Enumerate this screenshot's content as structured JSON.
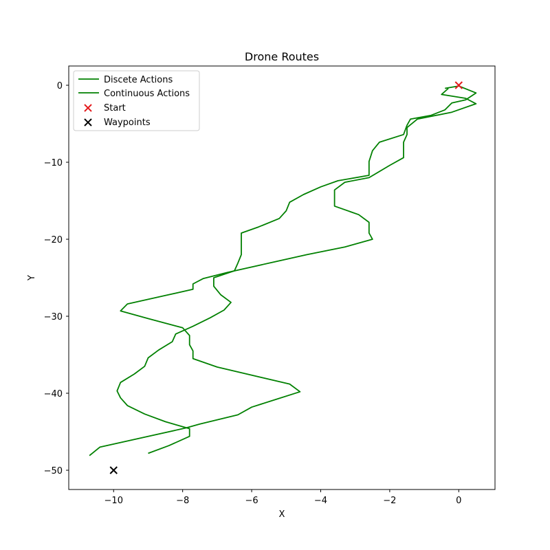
{
  "chart_data": {
    "type": "line",
    "title": "Drone Routes",
    "xlabel": "X",
    "ylabel": "Y",
    "xlim": [
      -11.3,
      1.05
    ],
    "ylim": [
      -52.5,
      2.5
    ],
    "xticks": [
      -10,
      -8,
      -6,
      -4,
      -2,
      0
    ],
    "yticks": [
      0,
      -10,
      -20,
      -30,
      -40,
      -50
    ],
    "xtick_labels": [
      "−10",
      "−8",
      "−6",
      "−4",
      "−2",
      "0"
    ],
    "ytick_labels": [
      "0",
      "−10",
      "−20",
      "−30",
      "−40",
      "−50"
    ],
    "grid": false,
    "legend_position": "top-left",
    "series": [
      {
        "name": "Discete Actions",
        "color": "#008000",
        "points": [
          [
            -9.0,
            -47.8
          ],
          [
            -8.4,
            -46.8
          ],
          [
            -7.8,
            -45.6
          ],
          [
            -7.8,
            -44.6
          ],
          [
            -8.5,
            -43.7
          ],
          [
            -9.1,
            -42.7
          ],
          [
            -9.6,
            -41.6
          ],
          [
            -9.8,
            -40.6
          ],
          [
            -9.9,
            -39.7
          ],
          [
            -9.8,
            -38.6
          ],
          [
            -9.4,
            -37.5
          ],
          [
            -9.1,
            -36.5
          ],
          [
            -9.0,
            -35.4
          ],
          [
            -8.7,
            -34.4
          ],
          [
            -8.3,
            -33.3
          ],
          [
            -8.2,
            -32.3
          ],
          [
            -7.7,
            -31.3
          ],
          [
            -7.2,
            -30.2
          ],
          [
            -6.8,
            -29.2
          ],
          [
            -6.6,
            -28.2
          ],
          [
            -6.9,
            -27.2
          ],
          [
            -7.1,
            -26.1
          ],
          [
            -7.1,
            -25.0
          ],
          [
            -6.5,
            -24.1
          ],
          [
            -6.4,
            -23.1
          ],
          [
            -6.3,
            -22.0
          ],
          [
            -6.3,
            -21.1
          ],
          [
            -6.3,
            -20.0
          ],
          [
            -6.3,
            -19.2
          ],
          [
            -5.8,
            -18.4
          ],
          [
            -5.2,
            -17.3
          ],
          [
            -5.0,
            -16.3
          ],
          [
            -4.9,
            -15.2
          ],
          [
            -4.5,
            -14.2
          ],
          [
            -4.0,
            -13.2
          ],
          [
            -3.5,
            -12.4
          ],
          [
            -2.6,
            -11.7
          ],
          [
            -2.6,
            -10.9
          ],
          [
            -2.6,
            -9.9
          ],
          [
            -2.5,
            -8.5
          ],
          [
            -2.3,
            -7.4
          ],
          [
            -1.6,
            -6.4
          ],
          [
            -1.5,
            -5.2
          ],
          [
            -1.4,
            -4.4
          ],
          [
            -0.8,
            -3.9
          ],
          [
            -0.4,
            -3.2
          ],
          [
            -0.2,
            -2.3
          ],
          [
            0.2,
            -1.9
          ],
          [
            0.5,
            -1.0
          ],
          [
            0.0,
            -0.1
          ],
          [
            -0.4,
            -0.4
          ]
        ]
      },
      {
        "name": "Continuous Actions",
        "color": "#008000",
        "points": [
          [
            -10.7,
            -48.1
          ],
          [
            -10.4,
            -47.0
          ],
          [
            -7.9,
            -44.5
          ],
          [
            -7.5,
            -44.0
          ],
          [
            -6.4,
            -42.8
          ],
          [
            -6.0,
            -41.8
          ],
          [
            -5.3,
            -40.8
          ],
          [
            -4.6,
            -39.8
          ],
          [
            -4.9,
            -38.8
          ],
          [
            -7.0,
            -36.6
          ],
          [
            -7.7,
            -35.5
          ],
          [
            -7.7,
            -34.5
          ],
          [
            -7.8,
            -33.7
          ],
          [
            -7.8,
            -32.5
          ],
          [
            -8.0,
            -31.5
          ],
          [
            -9.0,
            -30.3
          ],
          [
            -9.8,
            -29.3
          ],
          [
            -9.6,
            -28.4
          ],
          [
            -8.5,
            -27.3
          ],
          [
            -7.7,
            -26.5
          ],
          [
            -7.7,
            -25.8
          ],
          [
            -7.4,
            -25.1
          ],
          [
            -6.7,
            -24.3
          ],
          [
            -4.4,
            -22.0
          ],
          [
            -3.3,
            -21.0
          ],
          [
            -2.5,
            -20.0
          ],
          [
            -2.6,
            -19.2
          ],
          [
            -2.6,
            -17.8
          ],
          [
            -2.9,
            -16.8
          ],
          [
            -3.6,
            -15.7
          ],
          [
            -3.6,
            -14.6
          ],
          [
            -3.6,
            -13.6
          ],
          [
            -3.3,
            -12.6
          ],
          [
            -2.6,
            -12.0
          ],
          [
            -2.0,
            -10.4
          ],
          [
            -1.6,
            -9.4
          ],
          [
            -1.6,
            -8.3
          ],
          [
            -1.6,
            -7.4
          ],
          [
            -1.5,
            -6.4
          ],
          [
            -1.5,
            -5.5
          ],
          [
            -1.2,
            -4.4
          ],
          [
            -0.2,
            -3.5
          ],
          [
            0.5,
            -2.4
          ],
          [
            0.2,
            -1.7
          ],
          [
            -0.5,
            -1.2
          ],
          [
            -0.3,
            -0.4
          ]
        ]
      }
    ],
    "markers": [
      {
        "name": "Start",
        "x": 0,
        "y": 0,
        "color": "#e41a1c",
        "symbol": "x"
      },
      {
        "name": "Waypoints",
        "x": -10,
        "y": -50,
        "color": "#000000",
        "symbol": "x"
      }
    ]
  }
}
